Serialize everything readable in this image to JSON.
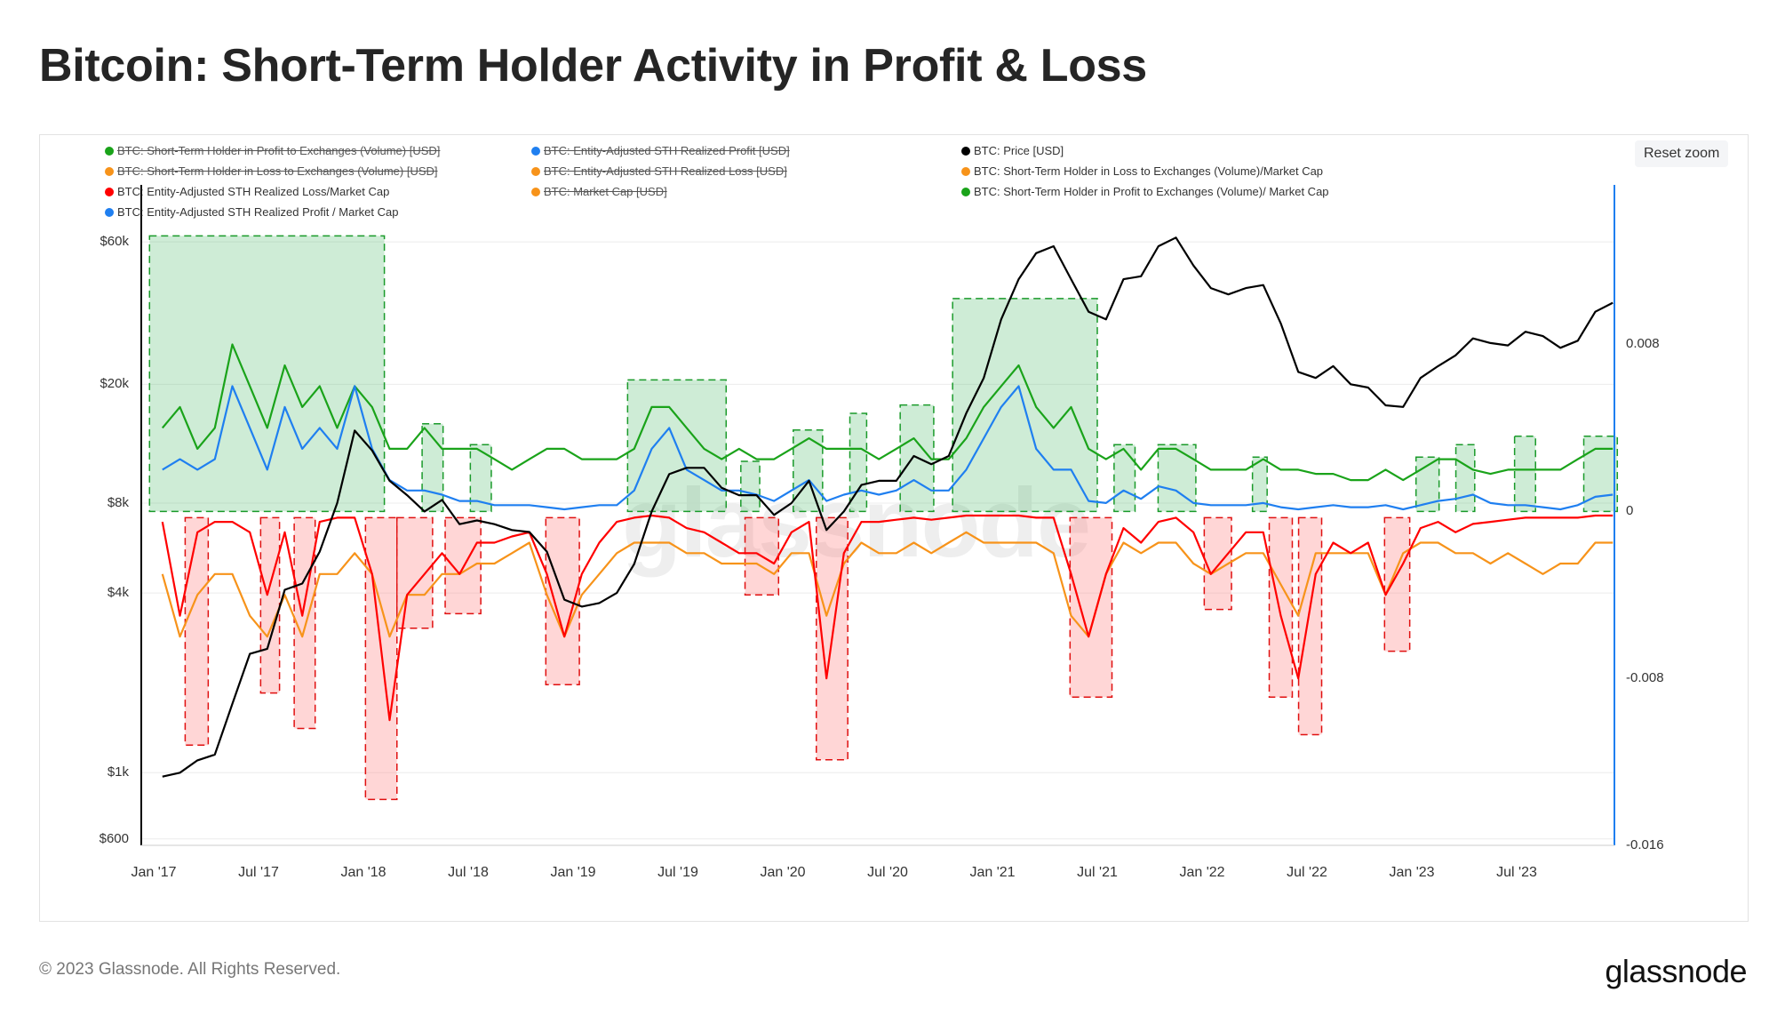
{
  "title": "Bitcoin: Short-Term Holder Activity in Profit & Loss",
  "reset_zoom": "Reset zoom",
  "watermark": "glassnode",
  "footer": {
    "copyright": "© 2023 Glassnode. All Rights Reserved.",
    "logo": "glassnode"
  },
  "legend": [
    {
      "label": "BTC: Short-Term Holder in Profit to Exchanges (Volume) [USD]",
      "color": "#1aa31a",
      "hidden": true
    },
    {
      "label": "BTC: Entity-Adjusted STH Realized Profit [USD]",
      "color": "#1f7ff0",
      "hidden": true
    },
    {
      "label": "BTC: Price [USD]",
      "color": "#000000",
      "hidden": false
    },
    {
      "label": "BTC: Short-Term Holder in Loss to Exchanges (Volume) [USD]",
      "color": "#f7931a",
      "hidden": true
    },
    {
      "label": "BTC: Entity-Adjusted STH Realized Loss [USD]",
      "color": "#f7931a",
      "hidden": true
    },
    {
      "label": "BTC: Short-Term Holder in Loss to Exchanges (Volume)/Market Cap",
      "color": "#f7931a",
      "hidden": false
    },
    {
      "label": "BTC: Entity-Adjusted STH Realized Loss/Market Cap",
      "color": "#ff0000",
      "hidden": false
    },
    {
      "label": "BTC: Market Cap [USD]",
      "color": "#f7931a",
      "hidden": true
    },
    {
      "label": "BTC: Short-Term Holder in Profit to Exchanges (Volume)/ Market Cap",
      "color": "#1aa31a",
      "hidden": false
    },
    {
      "label": "BTC: Entity-Adjusted STH Realized Profit / Market Cap",
      "color": "#1f7ff0",
      "hidden": false
    }
  ],
  "chart_data": {
    "type": "line",
    "title": "Bitcoin: Short-Term Holder Activity in Profit & Loss",
    "x_start": "2017-01",
    "x_resolution": "monthly",
    "x_ticks": [
      "Jan '17",
      "Jul '17",
      "Jan '18",
      "Jul '18",
      "Jan '19",
      "Jul '19",
      "Jan '20",
      "Jul '20",
      "Jan '21",
      "Jul '21",
      "Jan '22",
      "Jul '22",
      "Jan '23",
      "Jul '23"
    ],
    "left_axis": {
      "scale": "log",
      "range": [
        571,
        67000
      ],
      "ticks": [
        {
          "v": 60000,
          "label": "$60k"
        },
        {
          "v": 20000,
          "label": "$20k"
        },
        {
          "v": 8000,
          "label": "$8k"
        },
        {
          "v": 4000,
          "label": "$4k"
        },
        {
          "v": 1000,
          "label": "$1k"
        },
        {
          "v": 600,
          "label": "$600"
        }
      ]
    },
    "right_axis": {
      "scale": "linear",
      "range": [
        -0.016,
        0.0136
      ],
      "ticks": [
        {
          "v": 0.008,
          "label": "0.008"
        },
        {
          "v": 0,
          "label": "0"
        },
        {
          "v": -0.008,
          "label": "-0.008"
        },
        {
          "v": -0.016,
          "label": "-0.016"
        }
      ]
    },
    "series": [
      {
        "name": "BTC: Price [USD]",
        "axis": "left",
        "color": "#000000",
        "values": [
          970,
          1000,
          1100,
          1150,
          1700,
          2500,
          2600,
          4100,
          4300,
          5500,
          8000,
          14000,
          12000,
          9500,
          8500,
          7500,
          8200,
          6800,
          7000,
          6800,
          6500,
          6400,
          5500,
          3800,
          3600,
          3700,
          4000,
          5000,
          7500,
          10000,
          10500,
          10500,
          9000,
          8500,
          8500,
          7300,
          8000,
          9500,
          6500,
          7500,
          9200,
          9500,
          9500,
          11500,
          10800,
          11500,
          16000,
          21000,
          33000,
          45000,
          55000,
          58000,
          45000,
          35000,
          33000,
          45000,
          46000,
          58000,
          62000,
          50000,
          42000,
          40000,
          42000,
          43000,
          32000,
          22000,
          21000,
          23000,
          20000,
          19500,
          17000,
          16800,
          21000,
          23000,
          25000,
          28500,
          27500,
          27000,
          30000,
          29000,
          26500,
          28000,
          35000,
          37500
        ]
      },
      {
        "name": "BTC: Short-Term Holder in Profit to Exchanges (Volume)/ Market Cap",
        "axis": "right",
        "color": "#1aa31a",
        "values": [
          0.004,
          0.005,
          0.003,
          0.004,
          0.008,
          0.006,
          0.004,
          0.007,
          0.005,
          0.006,
          0.004,
          0.006,
          0.005,
          0.003,
          0.003,
          0.004,
          0.003,
          0.003,
          0.003,
          0.0025,
          0.002,
          0.0025,
          0.003,
          0.003,
          0.0025,
          0.0025,
          0.0025,
          0.003,
          0.005,
          0.005,
          0.004,
          0.003,
          0.0025,
          0.003,
          0.0025,
          0.0025,
          0.003,
          0.0035,
          0.003,
          0.003,
          0.003,
          0.0025,
          0.003,
          0.0035,
          0.0025,
          0.0025,
          0.0035,
          0.005,
          0.006,
          0.007,
          0.005,
          0.004,
          0.005,
          0.003,
          0.0025,
          0.003,
          0.002,
          0.003,
          0.003,
          0.0025,
          0.002,
          0.002,
          0.002,
          0.0025,
          0.002,
          0.002,
          0.0018,
          0.0018,
          0.0015,
          0.0015,
          0.002,
          0.0015,
          0.002,
          0.0025,
          0.0025,
          0.002,
          0.0018,
          0.002,
          0.002,
          0.002,
          0.002,
          0.0025,
          0.003,
          0.003
        ]
      },
      {
        "name": "BTC: Entity-Adjusted STH Realized Profit / Market Cap",
        "axis": "right",
        "color": "#1f7ff0",
        "values": [
          0.002,
          0.0025,
          0.002,
          0.0025,
          0.006,
          0.004,
          0.002,
          0.005,
          0.003,
          0.004,
          0.003,
          0.006,
          0.003,
          0.0015,
          0.001,
          0.001,
          0.0008,
          0.0005,
          0.0005,
          0.0003,
          0.0003,
          0.0003,
          0.0002,
          0.0001,
          0.0002,
          0.0003,
          0.0003,
          0.001,
          0.003,
          0.004,
          0.002,
          0.0015,
          0.001,
          0.001,
          0.0008,
          0.0005,
          0.001,
          0.0015,
          0.0005,
          0.0008,
          0.001,
          0.0008,
          0.001,
          0.0015,
          0.001,
          0.001,
          0.002,
          0.0035,
          0.005,
          0.006,
          0.003,
          0.002,
          0.002,
          0.0005,
          0.0004,
          0.001,
          0.0006,
          0.0012,
          0.001,
          0.0004,
          0.0003,
          0.0003,
          0.0003,
          0.0004,
          0.0002,
          0.0001,
          0.0002,
          0.0003,
          0.0002,
          0.0002,
          0.0003,
          0.0001,
          0.0003,
          0.0005,
          0.0006,
          0.0008,
          0.0004,
          0.0003,
          0.0003,
          0.0002,
          0.0001,
          0.0003,
          0.0007,
          0.0008
        ]
      },
      {
        "name": "BTC: Short-Term Holder in Loss to Exchanges (Volume)/Market Cap",
        "axis": "right",
        "color": "#f7931a",
        "values": [
          -0.003,
          -0.006,
          -0.004,
          -0.003,
          -0.003,
          -0.005,
          -0.006,
          -0.004,
          -0.006,
          -0.003,
          -0.003,
          -0.002,
          -0.003,
          -0.006,
          -0.004,
          -0.004,
          -0.003,
          -0.003,
          -0.0025,
          -0.0025,
          -0.002,
          -0.0015,
          -0.004,
          -0.006,
          -0.004,
          -0.003,
          -0.002,
          -0.0015,
          -0.0015,
          -0.0015,
          -0.002,
          -0.002,
          -0.0025,
          -0.0025,
          -0.0025,
          -0.003,
          -0.002,
          -0.002,
          -0.005,
          -0.0025,
          -0.0015,
          -0.002,
          -0.002,
          -0.0015,
          -0.002,
          -0.0015,
          -0.001,
          -0.0015,
          -0.0015,
          -0.0015,
          -0.0015,
          -0.002,
          -0.005,
          -0.006,
          -0.003,
          -0.0015,
          -0.002,
          -0.0015,
          -0.0015,
          -0.0025,
          -0.003,
          -0.0025,
          -0.002,
          -0.002,
          -0.0035,
          -0.005,
          -0.002,
          -0.002,
          -0.002,
          -0.002,
          -0.004,
          -0.002,
          -0.0015,
          -0.0015,
          -0.002,
          -0.002,
          -0.0025,
          -0.002,
          -0.0025,
          -0.003,
          -0.0025,
          -0.0025,
          -0.0015,
          -0.0015
        ]
      },
      {
        "name": "BTC: Entity-Adjusted STH Realized Loss/Market Cap",
        "axis": "right",
        "color": "#ff0000",
        "values": [
          -0.0005,
          -0.005,
          -0.001,
          -0.0005,
          -0.0005,
          -0.001,
          -0.004,
          -0.001,
          -0.005,
          -0.0005,
          -0.0003,
          -0.0003,
          -0.003,
          -0.01,
          -0.004,
          -0.003,
          -0.002,
          -0.003,
          -0.0015,
          -0.0015,
          -0.0012,
          -0.001,
          -0.003,
          -0.006,
          -0.003,
          -0.0015,
          -0.0005,
          -0.0003,
          -0.0002,
          -0.0003,
          -0.0008,
          -0.001,
          -0.0015,
          -0.002,
          -0.002,
          -0.0025,
          -0.001,
          -0.0005,
          -0.008,
          -0.002,
          -0.0005,
          -0.0005,
          -0.0004,
          -0.0003,
          -0.0004,
          -0.0003,
          -0.0002,
          -0.0002,
          -0.0002,
          -0.0002,
          -0.0003,
          -0.0003,
          -0.003,
          -0.006,
          -0.003,
          -0.0008,
          -0.0015,
          -0.0005,
          -0.0003,
          -0.001,
          -0.003,
          -0.002,
          -0.001,
          -0.001,
          -0.005,
          -0.008,
          -0.003,
          -0.0015,
          -0.002,
          -0.0015,
          -0.004,
          -0.0025,
          -0.0008,
          -0.0005,
          -0.001,
          -0.0006,
          -0.0005,
          -0.0004,
          -0.0003,
          -0.0003,
          -0.0003,
          -0.0003,
          -0.0002,
          -0.0002
        ]
      }
    ],
    "profit_regions": [
      [
        2016.98,
        2018.1,
        0.0132
      ],
      [
        2018.28,
        2018.38,
        0.0042
      ],
      [
        2018.51,
        2018.61,
        0.0032
      ],
      [
        2019.26,
        2019.73,
        0.0063
      ],
      [
        2019.8,
        2019.89,
        0.0024
      ],
      [
        2020.05,
        2020.19,
        0.0039
      ],
      [
        2020.32,
        2020.4,
        0.0047
      ],
      [
        2020.56,
        2020.72,
        0.0051
      ],
      [
        2020.81,
        2021.5,
        0.0102
      ],
      [
        2021.58,
        2021.68,
        0.0032
      ],
      [
        2021.79,
        2021.97,
        0.0032
      ],
      [
        2022.24,
        2022.31,
        0.0026
      ],
      [
        2023.02,
        2023.13,
        0.0026
      ],
      [
        2023.21,
        2023.3,
        0.0032
      ],
      [
        2023.49,
        2023.59,
        0.0036
      ],
      [
        2023.82,
        2023.98,
        0.0036
      ]
    ],
    "loss_regions": [
      [
        2017.15,
        2017.26,
        -0.0112
      ],
      [
        2017.51,
        2017.6,
        -0.0087
      ],
      [
        2017.67,
        2017.77,
        -0.0104
      ],
      [
        2018.01,
        2018.16,
        -0.0138
      ],
      [
        2018.16,
        2018.33,
        -0.0056
      ],
      [
        2018.39,
        2018.56,
        -0.0049
      ],
      [
        2018.87,
        2019.03,
        -0.0083
      ],
      [
        2019.82,
        2019.98,
        -0.004
      ],
      [
        2020.16,
        2020.31,
        -0.0119
      ],
      [
        2021.37,
        2021.57,
        -0.0089
      ],
      [
        2022.01,
        2022.14,
        -0.0047
      ],
      [
        2022.32,
        2022.43,
        -0.0089
      ],
      [
        2022.46,
        2022.57,
        -0.0107
      ],
      [
        2022.87,
        2022.99,
        -0.0067
      ]
    ]
  }
}
